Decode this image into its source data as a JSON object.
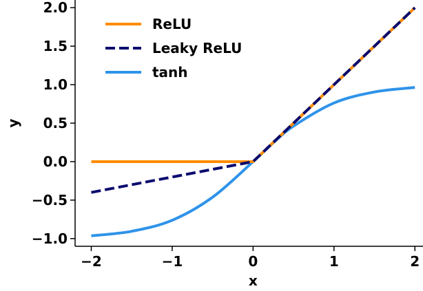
{
  "chart_data": {
    "type": "line",
    "title": "",
    "xlabel": "x",
    "ylabel": "y",
    "xlim": [
      -2.2,
      2.1
    ],
    "ylim": [
      -1.1,
      2.1
    ],
    "xticks": [
      -2,
      -1,
      0,
      1,
      2
    ],
    "xtick_labels": [
      "−2",
      "−1",
      "0",
      "1",
      "2"
    ],
    "yticks": [
      -1.0,
      -0.5,
      0.0,
      0.5,
      1.0,
      1.5,
      2.0
    ],
    "ytick_labels": [
      "−1.0",
      "−0.5",
      "0.0",
      "0.5",
      "1.0",
      "1.5",
      "2.0"
    ],
    "grid": false,
    "legend_position": "top-left",
    "x": [
      -2.0,
      -1.5,
      -1.0,
      -0.5,
      0.0,
      0.25,
      0.5,
      1.0,
      1.5,
      2.0
    ],
    "series": [
      {
        "name": "ReLU",
        "color": "#ff8c00",
        "dash": "solid",
        "values": [
          0.0,
          0.0,
          0.0,
          0.0,
          0.0,
          0.25,
          0.5,
          1.0,
          1.5,
          2.0
        ]
      },
      {
        "name": "Leaky ReLU",
        "color": "#0b0b6e",
        "dash": "dashed",
        "values": [
          -0.4,
          -0.3,
          -0.2,
          -0.1,
          0.0,
          0.25,
          0.5,
          1.0,
          1.5,
          2.0
        ]
      },
      {
        "name": "tanh",
        "color": "#2e93ea",
        "dash": "solid",
        "values": [
          -0.964,
          -0.905,
          -0.762,
          -0.462,
          0.0,
          0.245,
          0.462,
          0.762,
          0.905,
          0.964
        ]
      }
    ]
  }
}
